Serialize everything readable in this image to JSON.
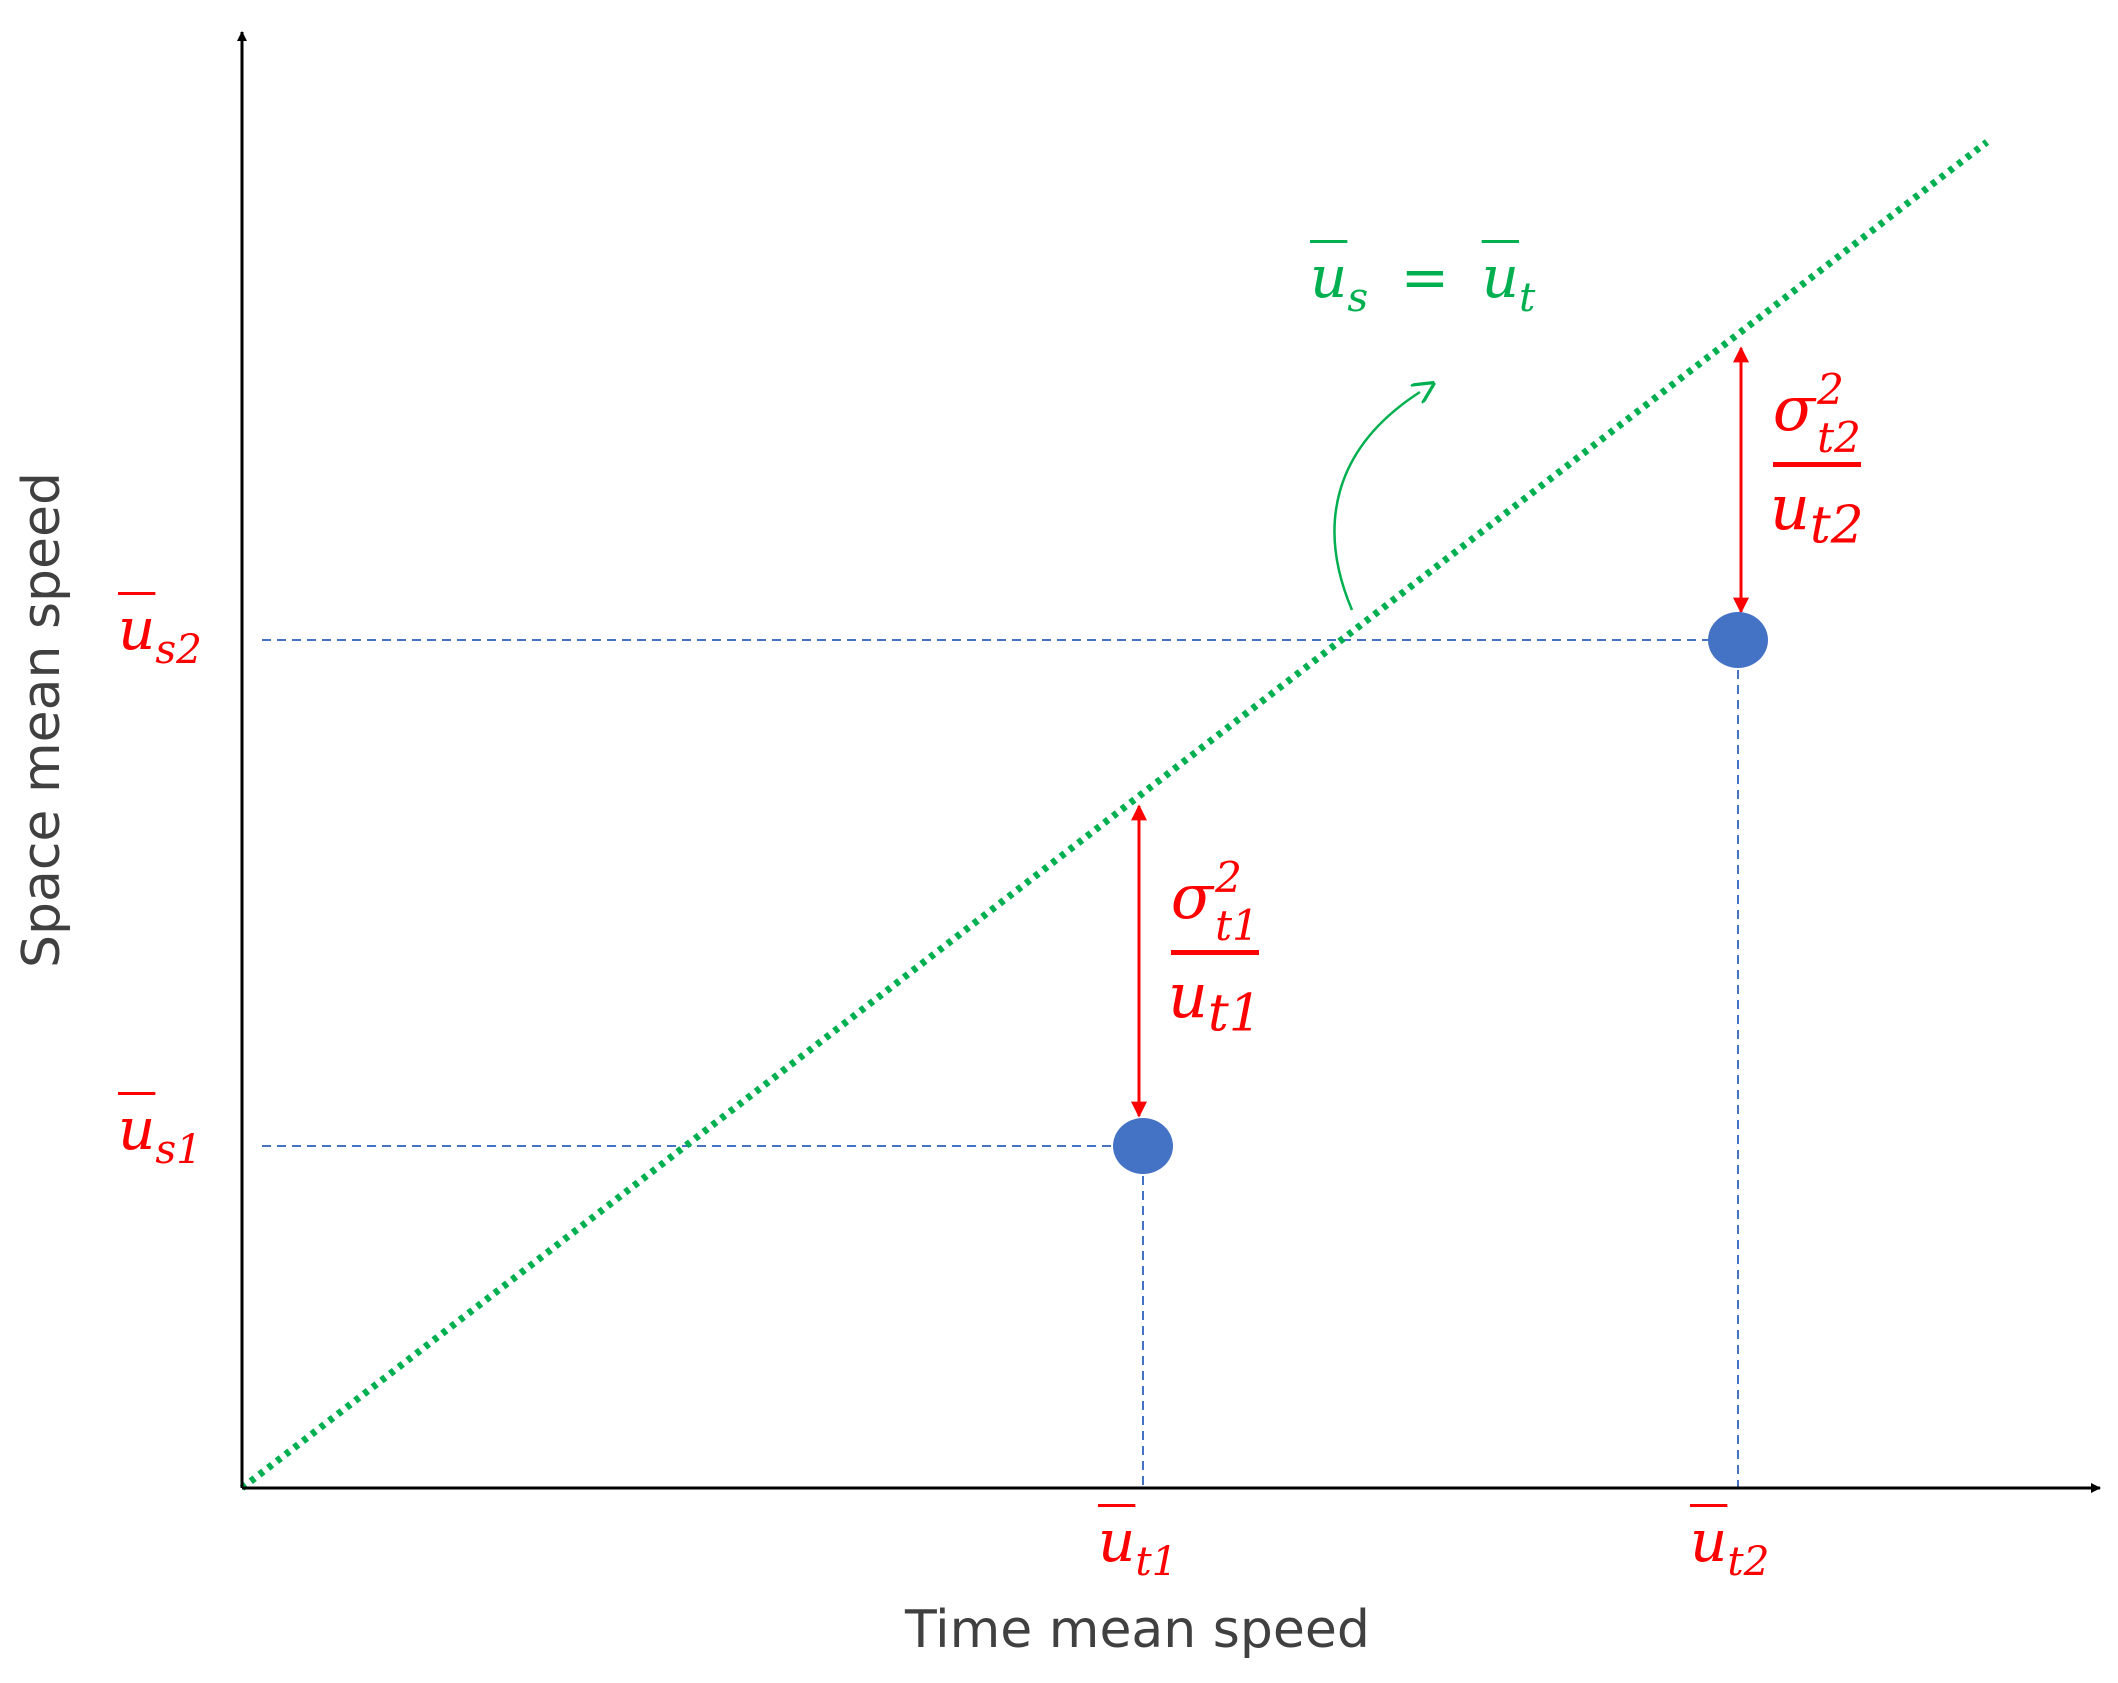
{
  "axes": {
    "x_title": "Time mean speed",
    "y_title": "Space mean speed"
  },
  "identity_line": {
    "label": "ū_s = ū_t",
    "label_base_left": "u",
    "label_sub_left": "s",
    "label_equals": "=",
    "label_base_right": "u",
    "label_sub_right": "t",
    "color": "#00b050"
  },
  "points": [
    {
      "name": "point-1",
      "x_label_base": "u",
      "x_label_sub": "t1",
      "y_label_base": "u",
      "y_label_sub": "s1",
      "frac_num_base": "σ",
      "frac_num_sup": "2",
      "frac_num_sub": "t1",
      "frac_den_base": "u",
      "frac_den_sub": "t1"
    },
    {
      "name": "point-2",
      "x_label_base": "u",
      "x_label_sub": "t2",
      "y_label_base": "u",
      "y_label_sub": "s2",
      "frac_num_base": "σ",
      "frac_num_sup": "2",
      "frac_num_sub": "t2",
      "frac_den_base": "u",
      "frac_den_sub": "t2"
    }
  ],
  "colors": {
    "point_fill": "#4472c4",
    "guide": "#4472c4",
    "difference_arrow": "#ff0000",
    "axis": "#000000",
    "text_red": "#ff0000"
  }
}
